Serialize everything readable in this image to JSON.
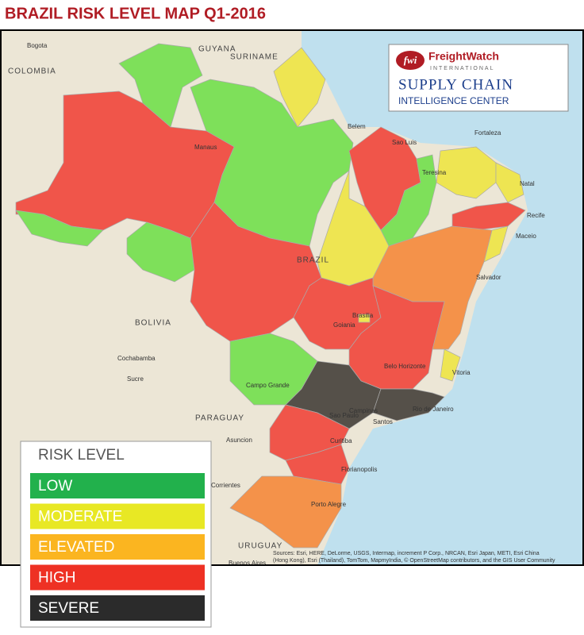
{
  "title": "BRAZIL RISK LEVEL MAP Q1-2016",
  "logo": {
    "mark": "fwi",
    "name": "FreightWatch",
    "sub": "INTERNATIONAL",
    "line1": "SUPPLY CHAIN",
    "line2": "INTELLIGENCE CENTER"
  },
  "legend": {
    "title": "RISK LEVEL",
    "levels": [
      {
        "label": "LOW",
        "color": "#22b14c"
      },
      {
        "label": "MODERATE",
        "color": "#e8e824"
      },
      {
        "label": "ELEVATED",
        "color": "#fbb520"
      },
      {
        "label": "HIGH",
        "color": "#ee3124"
      },
      {
        "label": "SEVERE",
        "color": "#2b2b2b"
      }
    ]
  },
  "regions": [
    {
      "name": "Para",
      "color": "#7ee05a"
    },
    {
      "name": "Amazonas",
      "color": "#f0554a"
    },
    {
      "name": "Roraima",
      "color": "#7ee05a"
    },
    {
      "name": "Amapa",
      "color": "#eee552"
    },
    {
      "name": "Acre",
      "color": "#7ee05a"
    },
    {
      "name": "Rondonia",
      "color": "#7ee05a"
    },
    {
      "name": "Mato Grosso",
      "color": "#f0554a"
    },
    {
      "name": "Maranhao",
      "color": "#f0554a"
    },
    {
      "name": "Piaui",
      "color": "#7ee05a"
    },
    {
      "name": "Ceara",
      "color": "#eee552"
    },
    {
      "name": "Rio Grande do Norte",
      "color": "#eee552"
    },
    {
      "name": "Pernambuco",
      "color": "#f0554a"
    },
    {
      "name": "Alagoas",
      "color": "#eee552"
    },
    {
      "name": "Tocantins",
      "color": "#eee552"
    },
    {
      "name": "Bahia",
      "color": "#f4924a"
    },
    {
      "name": "Goias",
      "color": "#f0554a"
    },
    {
      "name": "Minas Gerais",
      "color": "#f0554a"
    },
    {
      "name": "Espirito Santo",
      "color": "#eee552"
    },
    {
      "name": "Mato Grosso do Sul",
      "color": "#7ee05a"
    },
    {
      "name": "Sao Paulo",
      "color": "#555049"
    },
    {
      "name": "Rio de Janeiro",
      "color": "#555049"
    },
    {
      "name": "Parana",
      "color": "#f0554a"
    },
    {
      "name": "Santa Catarina",
      "color": "#f0554a"
    },
    {
      "name": "Rio Grande do Sul",
      "color": "#f4924a"
    },
    {
      "name": "Brasilia",
      "color": "#eee552"
    }
  ],
  "places": [
    "Bogota",
    "GUYANA",
    "SURINAME",
    "COLOMBIA",
    "Manaus",
    "Belem",
    "Sao Luis",
    "Fortaleza",
    "Natal",
    "Teresina",
    "Recife",
    "Maceio",
    "BRAZIL",
    "Salvador",
    "BOLIVIA",
    "Cochabamba",
    "Sucre",
    "Brasilia",
    "Goiania",
    "Belo Horizonte",
    "Vitoria",
    "Campo Grande",
    "PARAGUAY",
    "Asuncion",
    "Sao Paulo",
    "Campinas",
    "Rio de Janeiro",
    "Santos",
    "Curitiba",
    "Florianopolis",
    "Corrientes",
    "Porto Alegre",
    "URUGUAY",
    "Buenos Aires"
  ],
  "sources": "Sources: Esri, HERE, DeLorme, USGS, Intermap, increment P Corp., NRCAN, Esri Japan, METI, Esri China (Hong Kong), Esri (Thailand), TomTom, MapmyIndia, © OpenStreetMap contributors, and the GIS User Community"
}
